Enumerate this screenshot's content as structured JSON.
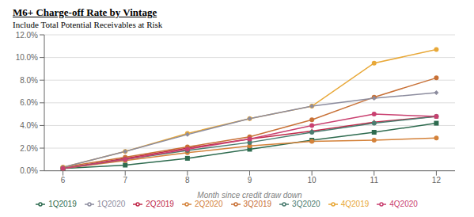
{
  "chart_data": {
    "type": "line",
    "title": "M6+ Charge-off Rate by Vintage",
    "subtitle": "Include Total Potential Receivables at Risk",
    "xlabel": "Month since credit draw down",
    "x": [
      6,
      7,
      8,
      9,
      10,
      11,
      12
    ],
    "xlim": [
      5.7,
      12.3
    ],
    "xticks": [
      6,
      7,
      8,
      9,
      10,
      11,
      12
    ],
    "ylim": [
      0.0,
      0.12
    ],
    "yticks": [
      {
        "value": 0.0,
        "label": "0.0%"
      },
      {
        "value": 0.02,
        "label": "2.0%"
      },
      {
        "value": 0.04,
        "label": "4.0%"
      },
      {
        "value": 0.06,
        "label": "6.0%"
      },
      {
        "value": 0.08,
        "label": "8.0%"
      },
      {
        "value": 0.1,
        "label": "10.0%"
      },
      {
        "value": 0.12,
        "label": "12.0%"
      }
    ],
    "grid": true,
    "legend": "bottom",
    "series": [
      {
        "name": "1Q2019",
        "color": "#2e6b4f",
        "marker": "square",
        "values": [
          0.002,
          0.005,
          0.011,
          0.019,
          0.027,
          0.034,
          0.042
        ]
      },
      {
        "name": "2Q2019",
        "color": "#c0294a",
        "marker": "triangle",
        "values": [
          0.002,
          0.011,
          0.02,
          0.028,
          0.035,
          0.043,
          0.048
        ]
      },
      {
        "name": "3Q2019",
        "color": "#c87137",
        "marker": "circle",
        "values": [
          0.003,
          0.012,
          0.021,
          0.03,
          0.045,
          0.065,
          0.082
        ]
      },
      {
        "name": "4Q2019",
        "color": "#e8a838",
        "marker": "circle",
        "values": [
          0.003,
          0.017,
          0.033,
          0.046,
          0.057,
          0.095,
          0.107
        ]
      },
      {
        "name": "1Q2020",
        "color": "#8c8c9e",
        "marker": "diamond",
        "values": [
          0.003,
          0.017,
          0.032,
          0.046,
          0.057,
          0.064,
          0.069
        ]
      },
      {
        "name": "2Q2020",
        "color": "#d4823a",
        "marker": "circle",
        "values": [
          0.002,
          0.009,
          0.016,
          0.022,
          0.026,
          0.027,
          0.029
        ]
      },
      {
        "name": "3Q2020",
        "color": "#4a7c6f",
        "marker": "circle",
        "values": [
          0.002,
          0.01,
          0.018,
          0.025,
          0.034,
          0.042,
          0.048
        ]
      },
      {
        "name": "4Q2020",
        "color": "#c94070",
        "marker": "circle",
        "values": [
          0.002,
          0.01,
          0.019,
          0.028,
          0.04,
          0.05,
          0.048
        ]
      }
    ]
  }
}
